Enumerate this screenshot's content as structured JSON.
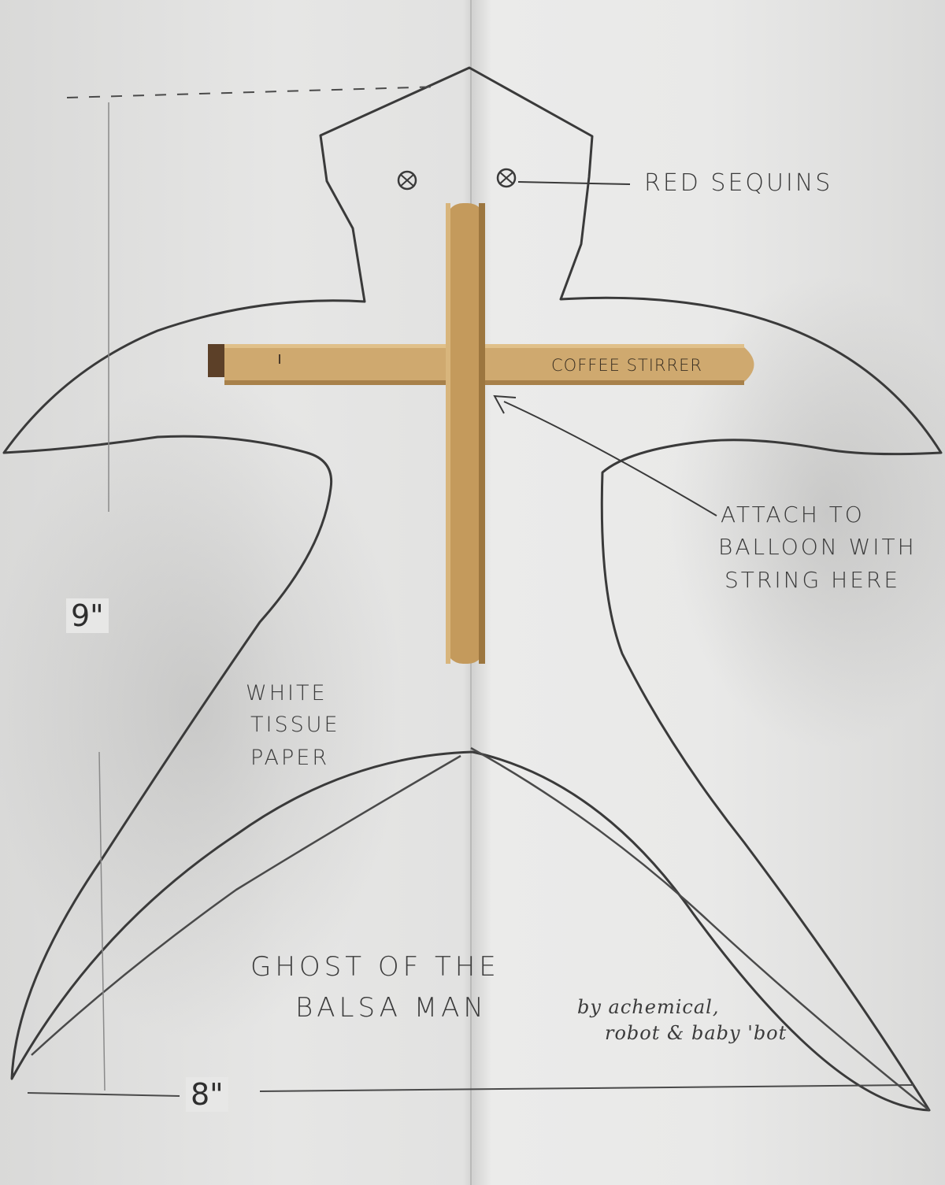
{
  "labels": {
    "red_sequins": "RED SEQUINS",
    "coffee_stirrer": "COFFEE STIRRER",
    "attach_line1": "ATTACH TO",
    "attach_line2": "BALLOON WITH",
    "attach_line3": "STRING HERE",
    "tissue_line1": "WHITE",
    "tissue_line2": "TISSUE",
    "tissue_line3": "PAPER",
    "title_line1": "GHOST OF THE",
    "title_line2": "BALSA MAN",
    "credit_line1": "by achemical,",
    "credit_line2": "robot & baby 'bot"
  },
  "dimensions": {
    "height": "9\"",
    "width": "8\""
  },
  "colors": {
    "paper": "#e6e6e5",
    "pencil": "#3a3a3a",
    "wood": "#c9a36a",
    "wood_dark": "#a8814a"
  }
}
